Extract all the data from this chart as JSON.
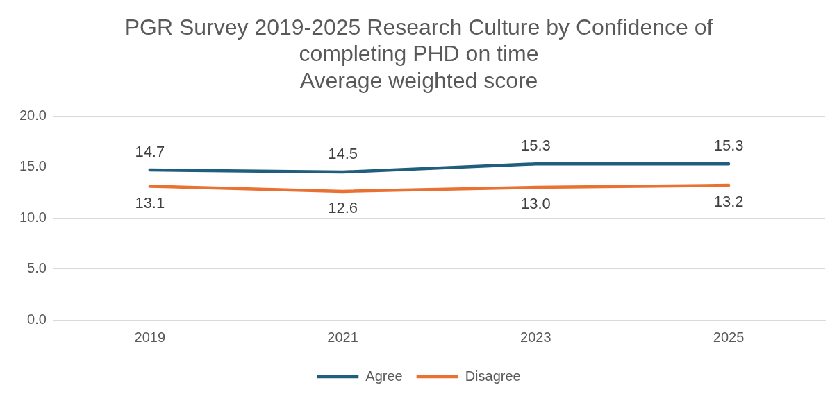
{
  "chart_data": {
    "type": "line",
    "title": "PGR Survey 2019-2025 Research Culture by Confidence of completing PHD on time",
    "subtitle": "Average weighted score",
    "categories": [
      "2019",
      "2021",
      "2023",
      "2025"
    ],
    "series": [
      {
        "name": "Agree",
        "color": "#1f5f7d",
        "values": [
          14.7,
          14.5,
          15.3,
          15.3
        ],
        "value_labels": [
          "14.7",
          "14.5",
          "15.3",
          "15.3"
        ]
      },
      {
        "name": "Disagree",
        "color": "#e97132",
        "values": [
          13.1,
          12.6,
          13.0,
          13.2
        ],
        "value_labels": [
          "13.1",
          "12.6",
          "13.0",
          "13.2"
        ]
      }
    ],
    "ylim": [
      0,
      20
    ],
    "yticks": [
      {
        "value": 0,
        "label": "0.0"
      },
      {
        "value": 5,
        "label": "5.0"
      },
      {
        "value": 10,
        "label": "10.0"
      },
      {
        "value": 15,
        "label": "15.0"
      },
      {
        "value": 20,
        "label": "20.0"
      }
    ],
    "grid": "y",
    "legend": "bottom",
    "marker": "none",
    "line_style": "solid"
  }
}
